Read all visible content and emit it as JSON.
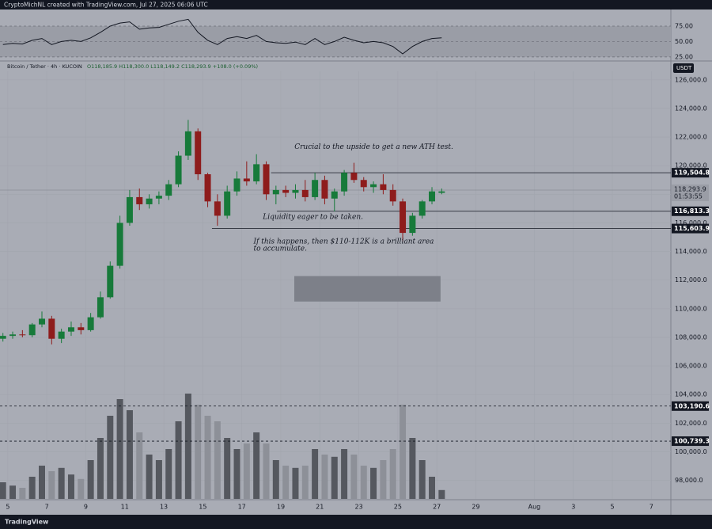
{
  "chart_data": {
    "type": "candlestick",
    "title": "CryptoMichNL created with TradingView.com, Jul 27, 2025 06:06 UTC",
    "symbol": "Bitcoin / Tether · 4h · KUCOIN",
    "ohlc": "O118,185.9 H118,300.0 L118,149.2 C118,293.9 +108.0 (+0.09%)",
    "currency": "USDT",
    "brand": "TradingView",
    "xlim": [
      4.6,
      39.0
    ],
    "xticks": [
      5,
      7,
      9,
      11,
      13,
      15,
      17,
      19,
      21,
      23,
      25,
      27,
      29,
      {
        "value": 32,
        "label": "Aug"
      },
      {
        "value": 34,
        "label": "3"
      },
      {
        "value": 36,
        "label": "5"
      },
      {
        "value": 38,
        "label": "7"
      }
    ],
    "ylim": [
      96700,
      126600
    ],
    "yticks": [
      {
        "value": 98000,
        "label": "98,000.0"
      },
      {
        "value": 100000,
        "label": "100,000.0"
      },
      {
        "value": 102000,
        "label": "102,000.0"
      },
      {
        "value": 104000,
        "label": "104,000.0"
      },
      {
        "value": 106000,
        "label": "106,000.0"
      },
      {
        "value": 108000,
        "label": "108,000.0"
      },
      {
        "value": 110000,
        "label": "110,000.0"
      },
      {
        "value": 112000,
        "label": "112,000.0"
      },
      {
        "value": 114000,
        "label": "114,000.0"
      },
      {
        "value": 116000,
        "label": "116,000.0"
      },
      {
        "value": 118000,
        "label": "118,000.0"
      },
      {
        "value": 120000,
        "label": "120,000.0"
      },
      {
        "value": 122000,
        "label": "122,000.0"
      },
      {
        "value": 124000,
        "label": "124,000.0"
      },
      {
        "value": 126000,
        "label": "126,000.0"
      }
    ],
    "up_color": "#177a3a",
    "down_color": "#8e1c1c",
    "x": [
      4.75,
      5.25,
      5.75,
      6.25,
      6.75,
      7.25,
      7.75,
      8.25,
      8.75,
      9.25,
      9.75,
      10.25,
      10.75,
      11.25,
      11.75,
      12.25,
      12.75,
      13.25,
      13.75,
      14.25,
      14.75,
      15.25,
      15.75,
      16.25,
      16.75,
      17.25,
      17.75,
      18.25,
      18.75,
      19.25,
      19.75,
      20.25,
      20.75,
      21.25,
      21.75,
      22.25,
      22.75,
      23.25,
      23.75,
      24.25,
      24.75,
      25.25,
      25.75,
      26.25,
      26.75,
      27.25
    ],
    "open": [
      107900,
      108100,
      108200,
      108150,
      108900,
      109300,
      107900,
      108400,
      108700,
      108500,
      109400,
      110800,
      113000,
      116000,
      117800,
      117300,
      117700,
      117900,
      118700,
      120700,
      122400,
      119400,
      117500,
      116500,
      118200,
      119100,
      118900,
      120100,
      118000,
      118300,
      118100,
      118300,
      117800,
      119000,
      117700,
      118200,
      119500,
      119000,
      118500,
      118700,
      118300,
      117500,
      115300,
      116500,
      117500,
      118100
    ],
    "high": [
      108300,
      108400,
      108500,
      109000,
      109800,
      109500,
      108600,
      109100,
      109000,
      109700,
      111200,
      113300,
      116500,
      118300,
      118400,
      118000,
      118200,
      119000,
      121000,
      123200,
      122600,
      119500,
      118000,
      118600,
      119600,
      120300,
      120800,
      120300,
      118600,
      118600,
      118700,
      119000,
      119500,
      119300,
      118400,
      119700,
      120200,
      119200,
      118900,
      119400,
      118700,
      117700,
      116700,
      117600,
      118500,
      118400
    ],
    "low": [
      107700,
      107900,
      108000,
      108000,
      108700,
      107500,
      107600,
      108100,
      108200,
      108400,
      109300,
      110700,
      112800,
      115800,
      116900,
      117000,
      117300,
      117600,
      118500,
      120400,
      119000,
      117100,
      115800,
      116300,
      117900,
      118600,
      118700,
      117600,
      117300,
      117800,
      117700,
      117500,
      117600,
      117300,
      116800,
      117900,
      118800,
      118200,
      118100,
      118000,
      117200,
      114700,
      115100,
      116300,
      117300,
      118000
    ],
    "close": [
      108100,
      108200,
      108150,
      108900,
      109300,
      107900,
      108400,
      108700,
      108500,
      109400,
      110800,
      113000,
      116000,
      117800,
      117300,
      117700,
      117900,
      118700,
      120700,
      122400,
      119400,
      117500,
      116500,
      118200,
      119100,
      118900,
      120100,
      118000,
      118300,
      118100,
      118300,
      117800,
      119000,
      117700,
      118200,
      119500,
      119000,
      118500,
      118700,
      118300,
      117500,
      115300,
      116500,
      117500,
      118200,
      118200
    ],
    "volume_lim": [
      0,
      100
    ],
    "volume_up_color": "#55585f",
    "volume_down_color": "#8d9098",
    "volume": [
      15,
      12,
      10,
      20,
      30,
      25,
      28,
      22,
      18,
      35,
      55,
      75,
      90,
      80,
      60,
      40,
      35,
      45,
      70,
      95,
      85,
      75,
      70,
      55,
      45,
      50,
      60,
      50,
      35,
      30,
      28,
      30,
      45,
      40,
      38,
      45,
      40,
      30,
      28,
      35,
      45,
      85,
      55,
      35,
      20,
      8
    ],
    "rsi_ylim": [
      21,
      102
    ],
    "rsi_yticks": [
      {
        "value": 75,
        "label": "75.00"
      },
      {
        "value": 50,
        "label": "50.00"
      },
      {
        "value": 25,
        "label": "25.00"
      }
    ],
    "rsi_color": "#131722",
    "rsi": [
      45,
      47,
      46,
      52,
      55,
      45,
      50,
      52,
      50,
      56,
      65,
      75,
      80,
      82,
      70,
      72,
      73,
      78,
      83,
      86,
      65,
      52,
      45,
      55,
      58,
      55,
      60,
      50,
      48,
      47,
      49,
      45,
      55,
      45,
      50,
      57,
      52,
      48,
      50,
      48,
      42,
      30,
      42,
      50,
      55,
      56
    ],
    "levels": [
      {
        "value": 119504.8,
        "label": "119,504.8",
        "from": 18.5,
        "style": "solid"
      },
      {
        "value": 116813.3,
        "label": "116,813.3",
        "from": 18.8,
        "style": "solid"
      },
      {
        "value": 115603.9,
        "label": "115,603.9",
        "from": 15.47,
        "style": "solid"
      },
      {
        "value": 103190.6,
        "label": "103,190.6",
        "from": 4.6,
        "style": "dashed"
      },
      {
        "value": 100739.3,
        "label": "100,739.3",
        "from": 4.6,
        "style": "dashed"
      }
    ],
    "last_price": {
      "value": 118293.9,
      "label": "118,293.9",
      "countdown": "01:53:55"
    },
    "zone": {
      "x": [
        19.69,
        27.19
      ],
      "y": [
        110500,
        112280
      ]
    },
    "annotations": [
      {
        "text": "Crucial to the upside to get a new ATH test.",
        "x": 19.7,
        "y": 121300
      },
      {
        "text": "Liquidity eager to be taken.",
        "x": 18.08,
        "y": 116400
      },
      {
        "text": "If this happens, then $110-112K is a brilliant area",
        "x": 17.6,
        "y": 114700
      },
      {
        "text": "to accumulate.",
        "x": 17.6,
        "y": 114200
      }
    ]
  }
}
